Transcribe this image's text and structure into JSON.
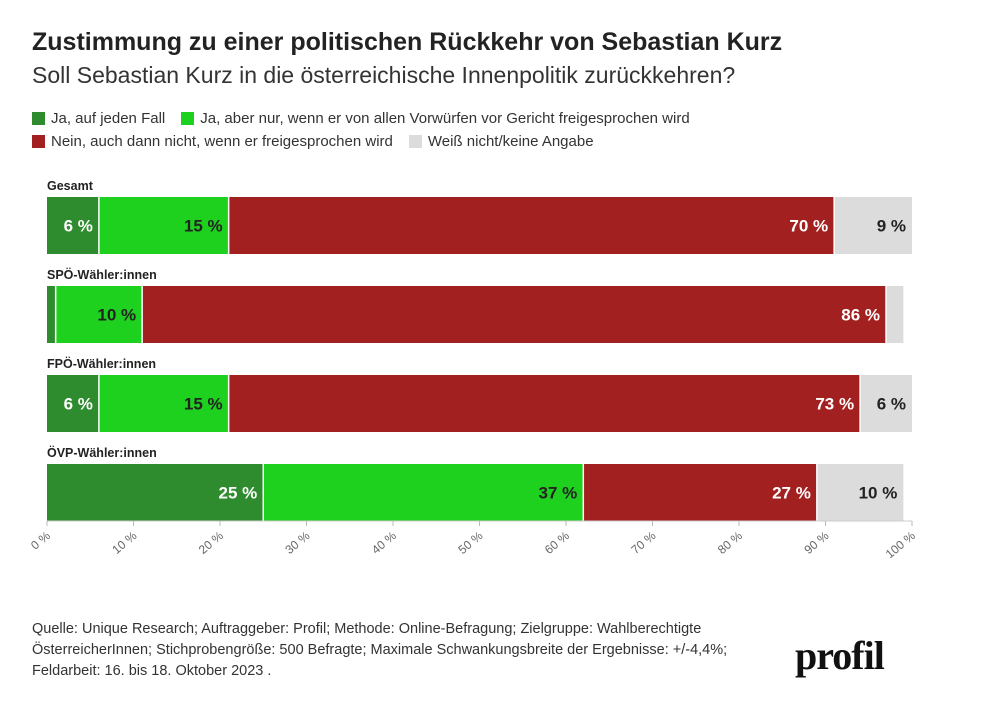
{
  "header": {
    "title": "Zustimmung zu einer politischen Rückkehr von Sebastian Kurz",
    "subtitle": "Soll Sebastian Kurz in die österreichische Innenpolitik zurückkehren?"
  },
  "legend": [
    {
      "label": "Ja, auf jeden Fall",
      "color": "#2e8b2e"
    },
    {
      "label": "Ja, aber nur, wenn er von allen Vorwürfen vor Gericht freigesprochen wird",
      "color": "#1ed11e"
    },
    {
      "label": "Nein, auch dann nicht, wenn er freigesprochen wird",
      "color": "#a32020"
    },
    {
      "label": "Weiß nicht/keine Angabe",
      "color": "#dcdcdc"
    }
  ],
  "chart_data": {
    "type": "bar",
    "orientation": "horizontal",
    "stacked": true,
    "title": "Zustimmung zu einer politischen Rückkehr von Sebastian Kurz",
    "subtitle": "Soll Sebastian Kurz in die österreichische Innenpolitik zurückkehren?",
    "categories": [
      "Gesamt",
      "SPÖ-Wähler:innen",
      "FPÖ-Wähler:innen",
      "ÖVP-Wähler:innen"
    ],
    "series": [
      {
        "name": "Ja, auf jeden Fall",
        "color": "#2e8b2e",
        "values": [
          6,
          1,
          6,
          25
        ],
        "labels": [
          "6 %",
          "",
          "6 %",
          "25 %"
        ]
      },
      {
        "name": "Ja, aber nur, wenn er von allen Vorwürfen vor Gericht freigesprochen wird",
        "color": "#1ed11e",
        "values": [
          15,
          10,
          15,
          37
        ],
        "labels": [
          "15 %",
          "10 %",
          "15 %",
          "37 %"
        ]
      },
      {
        "name": "Nein, auch dann nicht, wenn er freigesprochen wird",
        "color": "#a32020",
        "values": [
          70,
          86,
          73,
          27
        ],
        "labels": [
          "70 %",
          "86 %",
          "73 %",
          "27 %"
        ]
      },
      {
        "name": "Weiß nicht/keine Angabe",
        "color": "#dcdcdc",
        "values": [
          9,
          2,
          6,
          10
        ],
        "labels": [
          "9 %",
          "",
          "6 %",
          "10 %"
        ]
      }
    ],
    "xlim": [
      0,
      100
    ],
    "ticks": [
      "0 %",
      "10 %",
      "20 %",
      "30 %",
      "40 %",
      "50 %",
      "60 %",
      "70 %",
      "80 %",
      "90 %",
      "100 %"
    ]
  },
  "footer": {
    "source": "Quelle: Unique Research; Auftraggeber: Profil; Methode: Online-Befragung; Zielgruppe: Wahlberechtigte ÖsterreicherInnen; Stichprobengröße: 500 Befragte; Maximale Schwankungsbreite der Ergebnisse: +/-4,4%; Feldarbeit: 16. bis 18. Oktober 2023 .",
    "logo": "profil"
  }
}
